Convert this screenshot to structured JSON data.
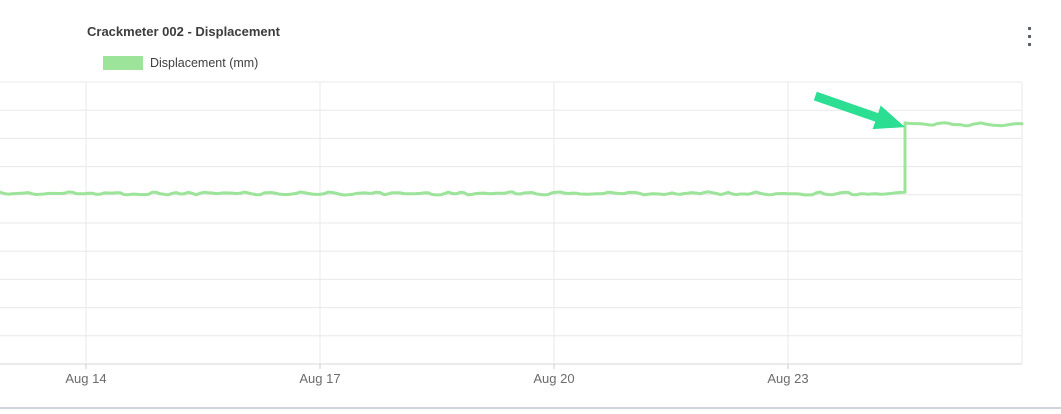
{
  "card": {
    "title": "Crackmeter 002 - Displacement"
  },
  "menu": {
    "icon": "kebab-vertical-icon",
    "dot_color": "#56616e"
  },
  "legend": {
    "items": [
      {
        "label": "Displacement (mm)",
        "swatch_color": "#9be49a"
      }
    ]
  },
  "chart_data": {
    "type": "line",
    "title": "Crackmeter 002 - Displacement",
    "legend_entries": [
      "Displacement (mm)"
    ],
    "legend_position": "top-left",
    "grid": true,
    "x_axis": {
      "unit": "date",
      "tick_labels": [
        "Aug 14",
        "Aug 17",
        "Aug 20",
        "Aug 23"
      ],
      "tick_days": [
        0,
        3,
        6,
        9
      ],
      "gridline_days": [
        0,
        3,
        6,
        9,
        12
      ],
      "domain_days": [
        -1.1,
        12
      ]
    },
    "y_axis": {
      "tick_labels_visible": false,
      "gridline_count": 11,
      "domain_units": [
        0,
        10
      ]
    },
    "series": [
      {
        "name": "Displacement (mm)",
        "color": "#9be49a",
        "line_width": 3,
        "shape": "flat noisy baseline then abrupt vertical step up to a higher noisy plateau",
        "start_day": -1.1,
        "end_day": 12,
        "baseline_level_units": 6.05,
        "plateau_level_units": 8.5,
        "step_day": 10.5,
        "noise_amplitude_units": 0.06
      }
    ],
    "annotation": {
      "type": "arrow",
      "color": "#2bde92",
      "tail": {
        "day": 9.35,
        "units": 9.5
      },
      "tip": {
        "day": 10.5,
        "units": 8.4
      },
      "points_at": "step increase in displacement"
    }
  },
  "colors": {
    "grid_line": "#e8e8e8",
    "axis_line": "#d7d7d7",
    "tick_mark": "#cccccc",
    "tick_label": "#6b6b6b",
    "title_text": "#3d3d3d",
    "legend_text": "#3f3f3f",
    "card_border": "#d3d3db",
    "series_line": "#9be49a",
    "annotation_arrow": "#2bde92"
  }
}
